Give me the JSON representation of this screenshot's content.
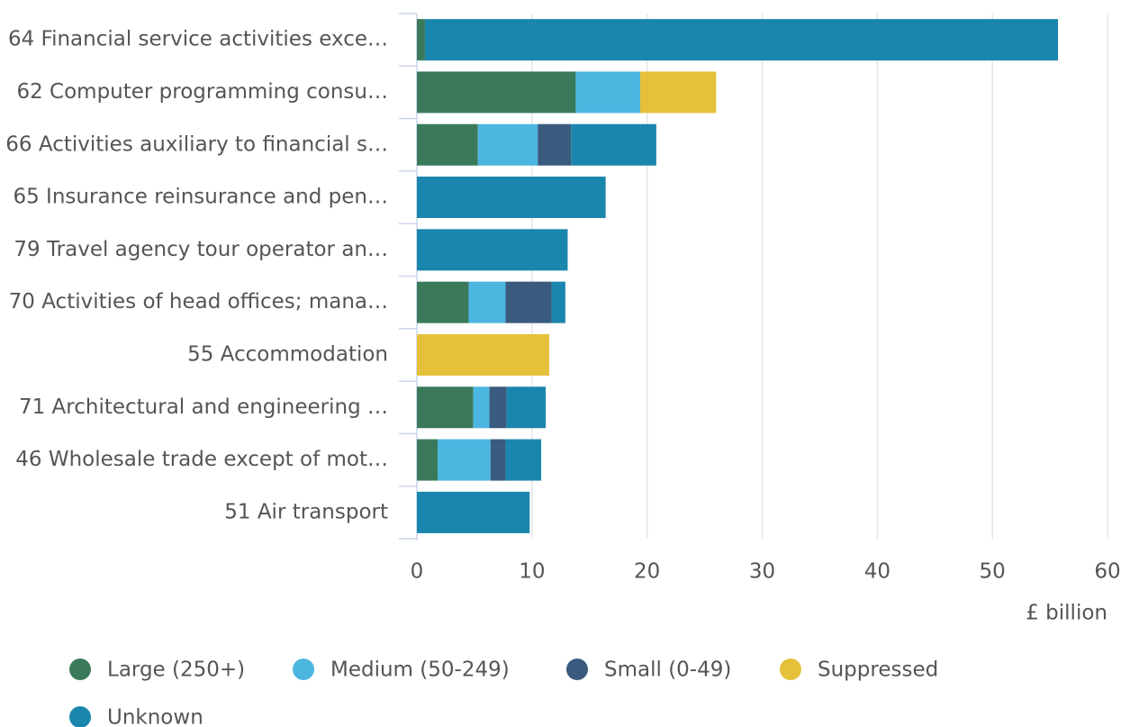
{
  "chart_data": {
    "type": "stacked-bar-horizontal",
    "categories": [
      "64 Financial service activities exce…",
      "62 Computer programming consu…",
      "66 Activities auxiliary to financial s…",
      "65 Insurance reinsurance and pen…",
      "79 Travel agency tour operator an…",
      "70 Activities of head offices; mana…",
      "55 Accommodation",
      "71 Architectural and engineering …",
      "46 Wholesale trade except of mot…",
      "51 Air transport"
    ],
    "series": [
      {
        "name": "Large (250+)",
        "color": "#3a7a5b",
        "values": [
          0.7,
          13.8,
          5.3,
          0,
          0,
          4.5,
          0,
          4.9,
          1.8,
          0
        ]
      },
      {
        "name": "Medium (50-249)",
        "color": "#4cb6e0",
        "values": [
          0,
          5.6,
          5.2,
          0,
          0,
          3.2,
          0,
          1.4,
          4.6,
          0
        ]
      },
      {
        "name": "Small (0-49)",
        "color": "#3a5b7e",
        "values": [
          0,
          0,
          2.9,
          0,
          0,
          4.0,
          0,
          1.5,
          1.3,
          0
        ]
      },
      {
        "name": "Suppressed",
        "color": "#e5c13b",
        "values": [
          0,
          6.6,
          0,
          0,
          0,
          0,
          11.5,
          0,
          0,
          0
        ]
      },
      {
        "name": "Unknown",
        "color": "#1b86ad",
        "values": [
          55.0,
          0,
          7.4,
          16.4,
          13.1,
          1.2,
          0,
          3.4,
          3.1,
          9.8
        ]
      }
    ],
    "xlim": [
      0,
      60
    ],
    "xticks": [
      0,
      10,
      20,
      30,
      40,
      50,
      60
    ],
    "x_label": "£ billion",
    "grid": true
  }
}
